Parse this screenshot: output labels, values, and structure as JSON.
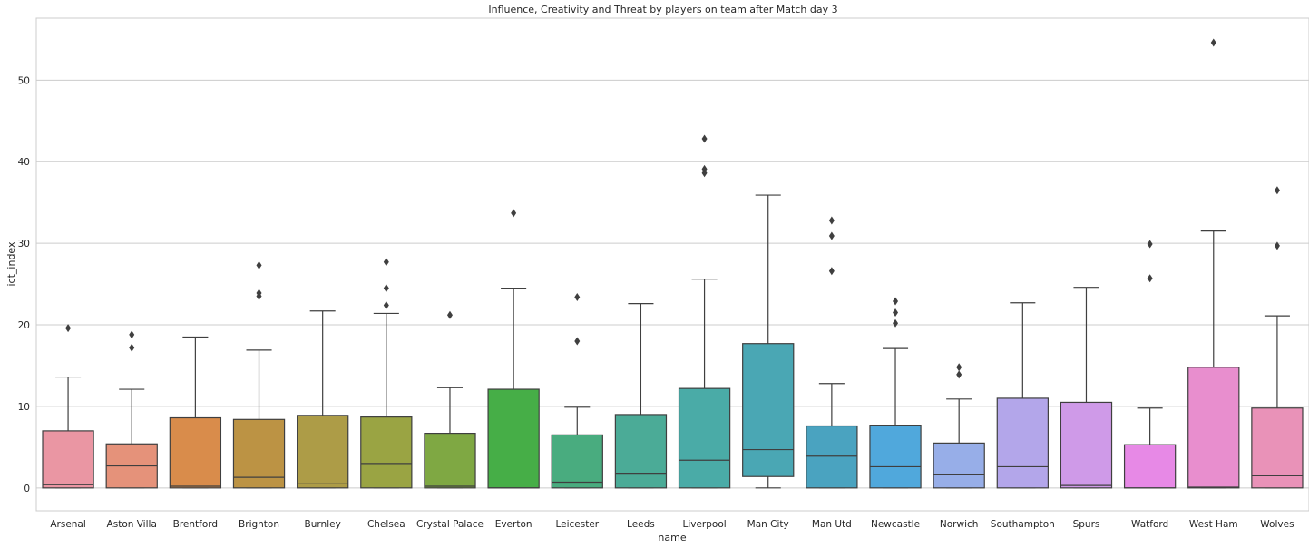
{
  "chart_data": {
    "type": "boxplot",
    "title": "Influence, Creativity and Threat by players on team after Match day 3",
    "xlabel": "name",
    "ylabel": "ict_index",
    "ylim": [
      -2.8,
      57.6
    ],
    "yticks": [
      0,
      10,
      20,
      30,
      40,
      50
    ],
    "grid": "horizontal",
    "categories": [
      "Arsenal",
      "Aston Villa",
      "Brentford",
      "Brighton",
      "Burnley",
      "Chelsea",
      "Crystal Palace",
      "Everton",
      "Leicester",
      "Leeds",
      "Liverpool",
      "Man City",
      "Man Utd",
      "Newcastle",
      "Norwich",
      "Southampton",
      "Spurs",
      "Watford",
      "West Ham",
      "Wolves"
    ],
    "colors": [
      "#ea96a3",
      "#e5927a",
      "#d98c4b",
      "#bc9344",
      "#ad9c47",
      "#9aa443",
      "#7fa843",
      "#46ae47",
      "#49ac7f",
      "#4bab97",
      "#4aaba7",
      "#4aa7b4",
      "#4aa3c0",
      "#50a8dc",
      "#97aee8",
      "#b3a6ea",
      "#cf9ae8",
      "#e789e6",
      "#e88ece",
      "#e992b8"
    ],
    "boxes": [
      {
        "q1": 0,
        "median": 0.4,
        "q3": 7.0,
        "whislo": 0,
        "whishi": 13.6,
        "fliers": [
          19.6
        ]
      },
      {
        "q1": 0,
        "median": 2.7,
        "q3": 5.4,
        "whislo": 0,
        "whishi": 12.1,
        "fliers": [
          17.2,
          18.8
        ]
      },
      {
        "q1": 0,
        "median": 0.2,
        "q3": 8.6,
        "whislo": 0,
        "whishi": 18.5,
        "fliers": []
      },
      {
        "q1": 0,
        "median": 1.3,
        "q3": 8.4,
        "whislo": 0,
        "whishi": 16.9,
        "fliers": [
          23.5,
          23.9,
          27.3
        ]
      },
      {
        "q1": 0,
        "median": 0.5,
        "q3": 8.9,
        "whislo": 0,
        "whishi": 21.7,
        "fliers": []
      },
      {
        "q1": 0,
        "median": 3.0,
        "q3": 8.7,
        "whislo": 0,
        "whishi": 21.4,
        "fliers": [
          22.4,
          24.5,
          27.7
        ]
      },
      {
        "q1": 0,
        "median": 0.2,
        "q3": 6.7,
        "whislo": 0,
        "whishi": 12.3,
        "fliers": [
          21.2
        ]
      },
      {
        "q1": 0,
        "median": 0.0,
        "q3": 12.1,
        "whislo": 0,
        "whishi": 24.5,
        "fliers": [
          33.7
        ]
      },
      {
        "q1": 0,
        "median": 0.7,
        "q3": 6.5,
        "whislo": 0,
        "whishi": 9.9,
        "fliers": [
          18.0,
          23.4
        ]
      },
      {
        "q1": 0,
        "median": 1.8,
        "q3": 9.0,
        "whislo": 0,
        "whishi": 22.6,
        "fliers": []
      },
      {
        "q1": 0,
        "median": 3.4,
        "q3": 12.2,
        "whislo": 0,
        "whishi": 25.6,
        "fliers": [
          38.6,
          39.1,
          42.8
        ]
      },
      {
        "q1": 1.4,
        "median": 4.7,
        "q3": 17.7,
        "whislo": 0,
        "whishi": 35.9,
        "fliers": []
      },
      {
        "q1": 0,
        "median": 3.9,
        "q3": 7.6,
        "whislo": 0,
        "whishi": 12.8,
        "fliers": [
          26.6,
          30.9,
          32.8
        ]
      },
      {
        "q1": 0,
        "median": 2.6,
        "q3": 7.7,
        "whislo": 0,
        "whishi": 17.1,
        "fliers": [
          20.2,
          21.5,
          22.9
        ]
      },
      {
        "q1": 0,
        "median": 1.7,
        "q3": 5.5,
        "whislo": 0,
        "whishi": 10.9,
        "fliers": [
          13.9,
          14.8
        ]
      },
      {
        "q1": 0,
        "median": 2.6,
        "q3": 11.0,
        "whislo": 0,
        "whishi": 22.7,
        "fliers": []
      },
      {
        "q1": 0,
        "median": 0.3,
        "q3": 10.5,
        "whislo": 0,
        "whishi": 24.6,
        "fliers": []
      },
      {
        "q1": 0,
        "median": 0.0,
        "q3": 5.3,
        "whislo": 0,
        "whishi": 9.8,
        "fliers": [
          25.7,
          29.9
        ]
      },
      {
        "q1": 0,
        "median": 0.1,
        "q3": 14.8,
        "whislo": 0,
        "whishi": 31.5,
        "fliers": [
          54.6
        ]
      },
      {
        "q1": 0,
        "median": 1.5,
        "q3": 9.8,
        "whislo": 0,
        "whishi": 21.1,
        "fliers": [
          29.7,
          36.5
        ]
      }
    ]
  }
}
